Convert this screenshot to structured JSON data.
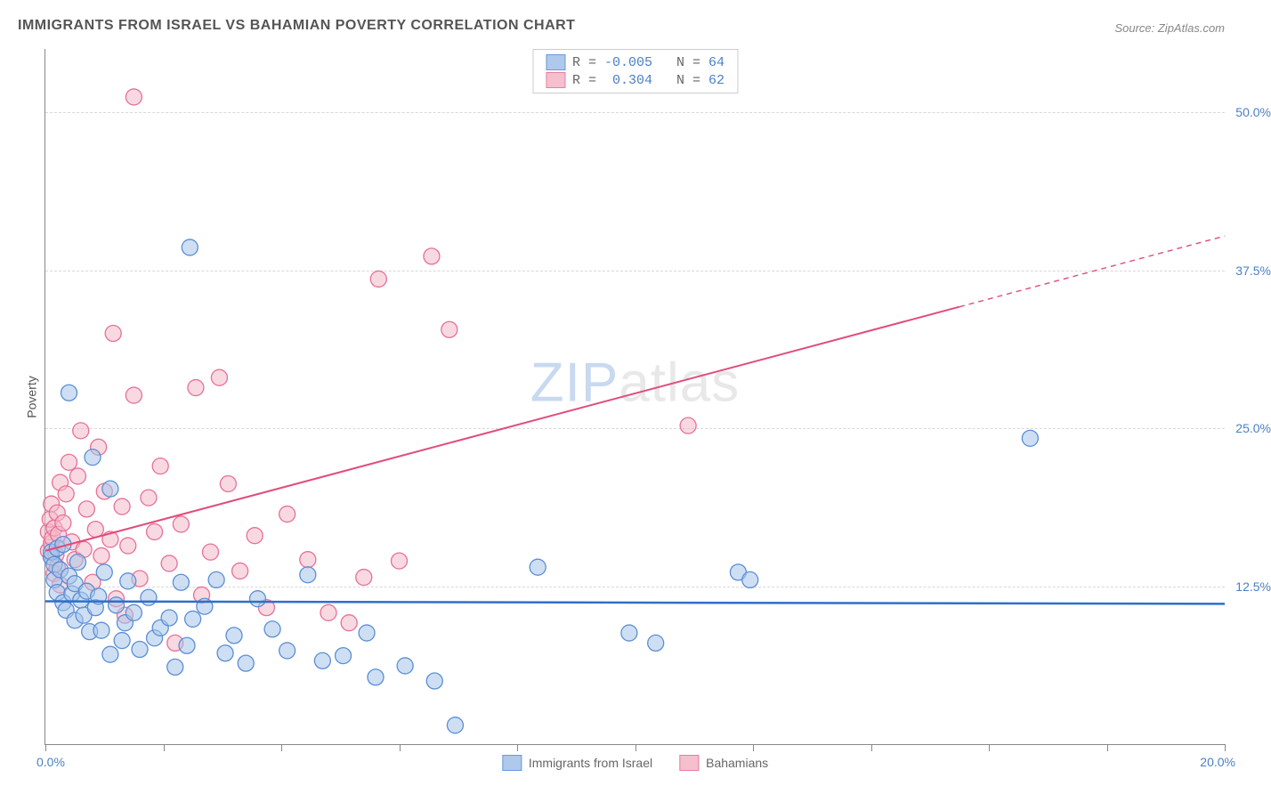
{
  "title": "IMMIGRANTS FROM ISRAEL VS BAHAMIAN POVERTY CORRELATION CHART",
  "source": "Source: ZipAtlas.com",
  "ylabel": "Poverty",
  "watermark": {
    "part1": "ZIP",
    "part2": "atlas"
  },
  "xlim": [
    0,
    20
  ],
  "ylim": [
    0,
    55
  ],
  "xlabels": {
    "min": "0.0%",
    "max": "20.0%"
  },
  "yticks": [
    12.5,
    25.0,
    37.5,
    50.0
  ],
  "yticklabels": [
    "12.5%",
    "25.0%",
    "37.5%",
    "50.0%"
  ],
  "xtick_positions": [
    0,
    2,
    4,
    6,
    8,
    10,
    12,
    14,
    16,
    18,
    20
  ],
  "series": {
    "blue": {
      "label": "Immigrants from Israel",
      "fill": "#a7c4ea",
      "stroke": "#5a8fd6",
      "fill_opacity": 0.55,
      "r_value": "-0.005",
      "n_value": "64",
      "trend": {
        "y_at_x0": 11.3,
        "y_at_x20": 11.1,
        "solid_until_x": 20,
        "stroke": "#2f6fc9",
        "stroke_width": 2.5
      },
      "points": [
        [
          0.1,
          14.8
        ],
        [
          0.1,
          15.2
        ],
        [
          0.15,
          14.2
        ],
        [
          0.15,
          13.0
        ],
        [
          0.2,
          15.5
        ],
        [
          0.2,
          12.0
        ],
        [
          0.25,
          13.8
        ],
        [
          0.3,
          15.8
        ],
        [
          0.3,
          11.2
        ],
        [
          0.35,
          10.6
        ],
        [
          0.4,
          13.3
        ],
        [
          0.4,
          27.8
        ],
        [
          0.45,
          11.9
        ],
        [
          0.5,
          12.7
        ],
        [
          0.5,
          9.8
        ],
        [
          0.55,
          14.4
        ],
        [
          0.6,
          11.4
        ],
        [
          0.65,
          10.2
        ],
        [
          0.7,
          12.1
        ],
        [
          0.75,
          8.9
        ],
        [
          0.8,
          22.7
        ],
        [
          0.85,
          10.8
        ],
        [
          0.9,
          11.7
        ],
        [
          0.95,
          9.0
        ],
        [
          1.0,
          13.6
        ],
        [
          1.1,
          20.2
        ],
        [
          1.1,
          7.1
        ],
        [
          1.2,
          11.0
        ],
        [
          1.3,
          8.2
        ],
        [
          1.35,
          9.6
        ],
        [
          1.4,
          12.9
        ],
        [
          1.5,
          10.4
        ],
        [
          1.6,
          7.5
        ],
        [
          1.75,
          11.6
        ],
        [
          1.85,
          8.4
        ],
        [
          1.95,
          9.2
        ],
        [
          2.1,
          10.0
        ],
        [
          2.2,
          6.1
        ],
        [
          2.3,
          12.8
        ],
        [
          2.4,
          7.8
        ],
        [
          2.45,
          39.3
        ],
        [
          2.5,
          9.9
        ],
        [
          2.7,
          10.9
        ],
        [
          2.9,
          13.0
        ],
        [
          3.05,
          7.2
        ],
        [
          3.2,
          8.6
        ],
        [
          3.4,
          6.4
        ],
        [
          3.6,
          11.5
        ],
        [
          3.85,
          9.1
        ],
        [
          4.1,
          7.4
        ],
        [
          4.45,
          13.4
        ],
        [
          4.7,
          6.6
        ],
        [
          5.05,
          7.0
        ],
        [
          5.6,
          5.3
        ],
        [
          5.45,
          8.8
        ],
        [
          6.1,
          6.2
        ],
        [
          6.6,
          5.0
        ],
        [
          6.95,
          1.5
        ],
        [
          8.35,
          14.0
        ],
        [
          9.9,
          8.8
        ],
        [
          10.35,
          8.0
        ],
        [
          11.75,
          13.6
        ],
        [
          11.95,
          13.0
        ],
        [
          16.7,
          24.2
        ]
      ]
    },
    "pink": {
      "label": "Bahamians",
      "fill": "#f4b9c8",
      "stroke": "#e77099",
      "fill_opacity": 0.55,
      "r_value": "0.304",
      "n_value": "62",
      "trend": {
        "y_at_x0": 15.3,
        "y_at_x20": 40.2,
        "solid_until_x": 15.5,
        "stroke": "#e24b7a",
        "stroke_width": 2,
        "dash": "6 5"
      },
      "points": [
        [
          0.05,
          15.3
        ],
        [
          0.05,
          16.8
        ],
        [
          0.08,
          17.8
        ],
        [
          0.1,
          14.8
        ],
        [
          0.1,
          15.9
        ],
        [
          0.1,
          19.0
        ],
        [
          0.12,
          16.3
        ],
        [
          0.15,
          13.5
        ],
        [
          0.15,
          17.1
        ],
        [
          0.18,
          15.0
        ],
        [
          0.2,
          18.3
        ],
        [
          0.2,
          14.0
        ],
        [
          0.22,
          16.6
        ],
        [
          0.25,
          20.7
        ],
        [
          0.25,
          12.6
        ],
        [
          0.3,
          17.5
        ],
        [
          0.35,
          19.8
        ],
        [
          0.4,
          22.3
        ],
        [
          0.45,
          16.0
        ],
        [
          0.5,
          14.6
        ],
        [
          0.55,
          21.2
        ],
        [
          0.6,
          24.8
        ],
        [
          0.65,
          15.4
        ],
        [
          0.7,
          18.6
        ],
        [
          0.8,
          12.8
        ],
        [
          0.85,
          17.0
        ],
        [
          0.9,
          23.5
        ],
        [
          0.95,
          14.9
        ],
        [
          1.0,
          20.0
        ],
        [
          1.1,
          16.2
        ],
        [
          1.15,
          32.5
        ],
        [
          1.2,
          11.5
        ],
        [
          1.3,
          18.8
        ],
        [
          1.35,
          10.2
        ],
        [
          1.4,
          15.7
        ],
        [
          1.5,
          27.6
        ],
        [
          1.5,
          51.2
        ],
        [
          1.6,
          13.1
        ],
        [
          1.75,
          19.5
        ],
        [
          1.85,
          16.8
        ],
        [
          1.95,
          22.0
        ],
        [
          2.1,
          14.3
        ],
        [
          2.2,
          8.0
        ],
        [
          2.3,
          17.4
        ],
        [
          2.55,
          28.2
        ],
        [
          2.65,
          11.8
        ],
        [
          2.8,
          15.2
        ],
        [
          2.95,
          29.0
        ],
        [
          3.1,
          20.6
        ],
        [
          3.3,
          13.7
        ],
        [
          3.55,
          16.5
        ],
        [
          3.75,
          10.8
        ],
        [
          4.1,
          18.2
        ],
        [
          4.45,
          14.6
        ],
        [
          4.8,
          10.4
        ],
        [
          5.15,
          9.6
        ],
        [
          5.65,
          36.8
        ],
        [
          6.55,
          38.6
        ],
        [
          6.85,
          32.8
        ],
        [
          6.0,
          14.5
        ],
        [
          5.4,
          13.2
        ],
        [
          10.9,
          25.2
        ]
      ]
    }
  },
  "marker_radius": 9,
  "background_color": "#ffffff",
  "grid_color": "#d8d8d8",
  "axis_color": "#888888",
  "title_fontsize": 16,
  "label_fontsize": 14
}
